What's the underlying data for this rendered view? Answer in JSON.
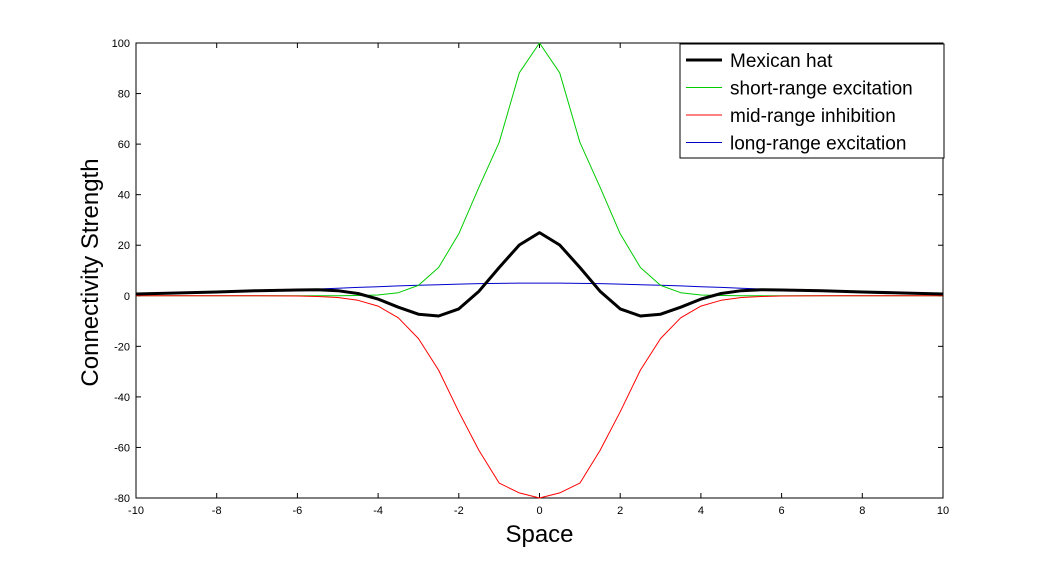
{
  "chart_data": {
    "type": "line",
    "title": "",
    "xlabel": "Space",
    "ylabel": "Connectivity Strength",
    "xlim": [
      -10,
      10
    ],
    "ylim": [
      -80,
      100
    ],
    "xticks": [
      -10,
      -8,
      -6,
      -4,
      -2,
      0,
      2,
      4,
      6,
      8,
      10
    ],
    "yticks": [
      -80,
      -60,
      -40,
      -20,
      0,
      20,
      40,
      60,
      80,
      100
    ],
    "x": [
      -10,
      -9,
      -8,
      -7,
      -6,
      -5.5,
      -5,
      -4.5,
      -4,
      -3.5,
      -3,
      -2.5,
      -2,
      -1.5,
      -1,
      -0.5,
      0,
      0.5,
      1,
      1.5,
      2,
      2.5,
      3,
      3.5,
      4,
      4.5,
      5,
      5.5,
      6,
      7,
      8,
      9,
      10
    ],
    "series": [
      {
        "name": "Mexican hat",
        "color": "#000000",
        "width": 3,
        "values": [
          0.7,
          1.1,
          1.5,
          2.0,
          2.3,
          2.4,
          2.0,
          0.9,
          -1.3,
          -4.5,
          -7.3,
          -8.0,
          -5.2,
          1.8,
          11.2,
          20.1,
          25.0,
          20.1,
          11.2,
          1.8,
          -5.2,
          -8.0,
          -7.3,
          -4.5,
          -1.3,
          0.9,
          2.0,
          2.4,
          2.3,
          2.0,
          1.5,
          1.1,
          0.7
        ]
      },
      {
        "name": "short-range excitation",
        "color": "#00cc00",
        "width": 1,
        "values": [
          0,
          0,
          0,
          0,
          0,
          0,
          0,
          0.1,
          0.3,
          1.2,
          4.1,
          11.2,
          24.5,
          43.0,
          60.7,
          88.2,
          100.0,
          88.2,
          60.7,
          43.0,
          24.5,
          11.2,
          4.1,
          1.2,
          0.3,
          0.1,
          0,
          0,
          0,
          0,
          0,
          0,
          0
        ]
      },
      {
        "name": "mid-range inhibition",
        "color": "#ff0000",
        "width": 1,
        "values": [
          0,
          0,
          0,
          0,
          -0.1,
          -0.3,
          -0.7,
          -1.8,
          -4.1,
          -8.7,
          -16.9,
          -29.4,
          -45.9,
          -61.2,
          -74.1,
          -78.0,
          -80.0,
          -78.0,
          -74.1,
          -61.2,
          -45.9,
          -29.4,
          -16.9,
          -8.7,
          -4.1,
          -1.8,
          -0.7,
          -0.3,
          -0.1,
          0,
          0,
          0,
          0
        ]
      },
      {
        "name": "long-range excitation",
        "color": "#0000cc",
        "width": 1,
        "values": [
          0.7,
          1.1,
          1.5,
          2.0,
          2.4,
          2.7,
          3.0,
          3.3,
          3.6,
          3.9,
          4.2,
          4.4,
          4.6,
          4.8,
          4.9,
          5.0,
          5.0,
          5.0,
          4.9,
          4.8,
          4.6,
          4.4,
          4.2,
          3.9,
          3.6,
          3.3,
          3.0,
          2.7,
          2.4,
          2.0,
          1.5,
          1.1,
          0.7
        ]
      }
    ],
    "grid": false,
    "legend_position": "top-right"
  }
}
